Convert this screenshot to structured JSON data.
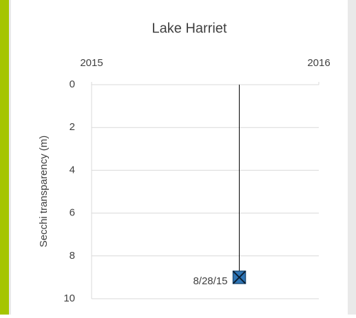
{
  "chart_data": {
    "type": "scatter",
    "title": "Lake Harriet",
    "y_label": "Secchi transparency (m)",
    "x": [
      2015.65
    ],
    "values": [
      9
    ],
    "point_labels": [
      "8/28/15"
    ],
    "color": "#2e75b6",
    "marker": "square-x",
    "drop_lines": true,
    "xlim": [
      2015,
      2016
    ],
    "xticks": [
      2015,
      2016
    ],
    "x_axis_position": "top",
    "ylim": [
      0,
      10
    ],
    "yticks": [
      0,
      2,
      4,
      6,
      8,
      10
    ],
    "y_inverted": true,
    "grid": true
  }
}
